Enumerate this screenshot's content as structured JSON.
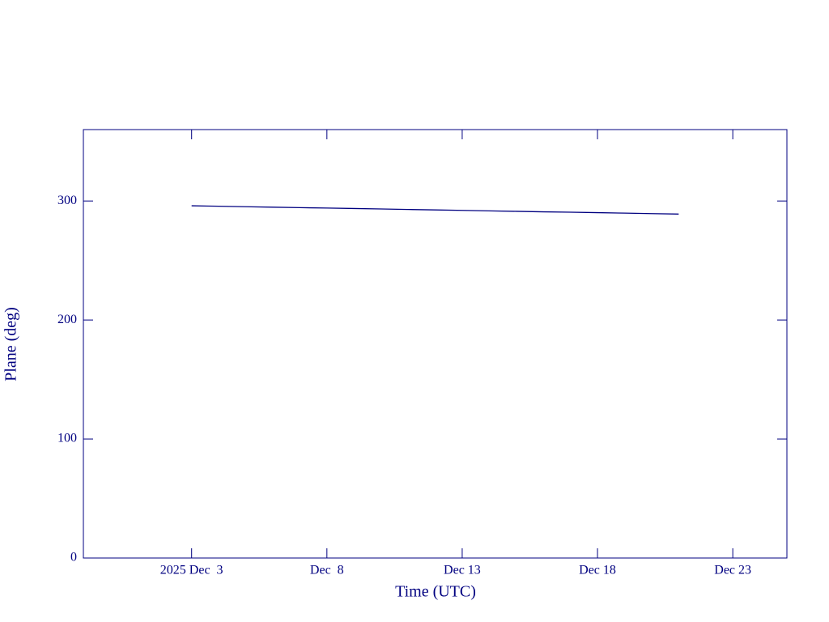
{
  "chart_data": {
    "type": "line",
    "x_label": "Time (UTC)",
    "y_label": "Plane (deg)",
    "x": [
      "2025-12-03",
      "2025-12-04",
      "2025-12-05",
      "2025-12-06",
      "2025-12-07",
      "2025-12-08",
      "2025-12-09",
      "2025-12-10",
      "2025-12-11",
      "2025-12-12",
      "2025-12-13",
      "2025-12-14",
      "2025-12-15",
      "2025-12-16",
      "2025-12-17",
      "2025-12-18",
      "2025-12-19",
      "2025-12-20",
      "2025-12-21"
    ],
    "values": [
      296,
      295.6,
      295.2,
      294.8,
      294.4,
      294.1,
      293.7,
      293.3,
      292.9,
      292.5,
      292.1,
      291.7,
      291.3,
      290.9,
      290.6,
      290.2,
      289.8,
      289.4,
      289.0
    ],
    "color": "#000080",
    "xlim": [
      "2025-11-29",
      "2025-12-25"
    ],
    "xticks": [
      {
        "value": "2025-12-03",
        "label": "2025 Dec  3"
      },
      {
        "value": "2025-12-08",
        "label": "Dec  8"
      },
      {
        "value": "2025-12-13",
        "label": "Dec 13"
      },
      {
        "value": "2025-12-18",
        "label": "Dec 18"
      },
      {
        "value": "2025-12-23",
        "label": "Dec 23"
      }
    ],
    "ylim": [
      0,
      360
    ],
    "yticks": [
      0,
      100,
      200,
      300
    ]
  }
}
